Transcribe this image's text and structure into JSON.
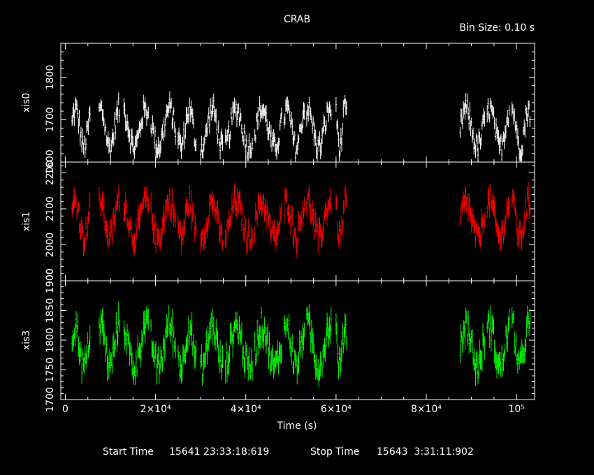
{
  "chart_data": {
    "type": "line",
    "title": "CRAB",
    "bin_size_label": "Bin Size:  0.10  s",
    "xlabel": "Time (s)",
    "x_ticks": [
      {
        "value": 0,
        "label": "0"
      },
      {
        "value": 20000,
        "label": "2×10⁴"
      },
      {
        "value": 40000,
        "label": "4×10⁴"
      },
      {
        "value": 60000,
        "label": "6×10⁴"
      },
      {
        "value": 80000,
        "label": "8×10⁴"
      },
      {
        "value": 100000,
        "label": "10⁵"
      }
    ],
    "xlim": [
      -1000,
      104000
    ],
    "footer": {
      "start_label": "Start Time",
      "start_value": "15641 23:33:18:619",
      "stop_label": "Stop Time",
      "stop_value": "15643  3:31:11:902"
    },
    "grid": false,
    "panels": [
      {
        "ylabel": "xis0",
        "color": "#ffffff",
        "ylim": [
          1600,
          1880
        ],
        "y_ticks": [
          1600,
          1700,
          1800
        ],
        "mean": 1680,
        "amp": 45,
        "noise": 25,
        "err": 15
      },
      {
        "ylabel": "xis1",
        "color": "#ff0000",
        "ylim": [
          1900,
          2230
        ],
        "y_ticks": [
          1900,
          2000,
          2100,
          2200
        ],
        "mean": 2070,
        "amp": 50,
        "noise": 30,
        "err": 22
      },
      {
        "ylabel": "xis3",
        "color": "#00ff00",
        "ylim": [
          1700,
          1900
        ],
        "y_ticks": [
          1700,
          1750,
          1800,
          1850,
          1900
        ],
        "mean": 1790,
        "amp": 35,
        "noise": 22,
        "err": 15
      }
    ],
    "observation_segments": [
      [
        1500,
        5500
      ],
      [
        7500,
        12000
      ],
      [
        13000,
        18500
      ],
      [
        19000,
        24500
      ],
      [
        25000,
        29000
      ],
      [
        30000,
        35000
      ],
      [
        35500,
        41500
      ],
      [
        42000,
        48000
      ],
      [
        48500,
        53000
      ],
      [
        53500,
        59000
      ],
      [
        60000,
        62500
      ],
      [
        87500,
        93000
      ],
      [
        93500,
        98500
      ],
      [
        99000,
        103000
      ]
    ]
  }
}
